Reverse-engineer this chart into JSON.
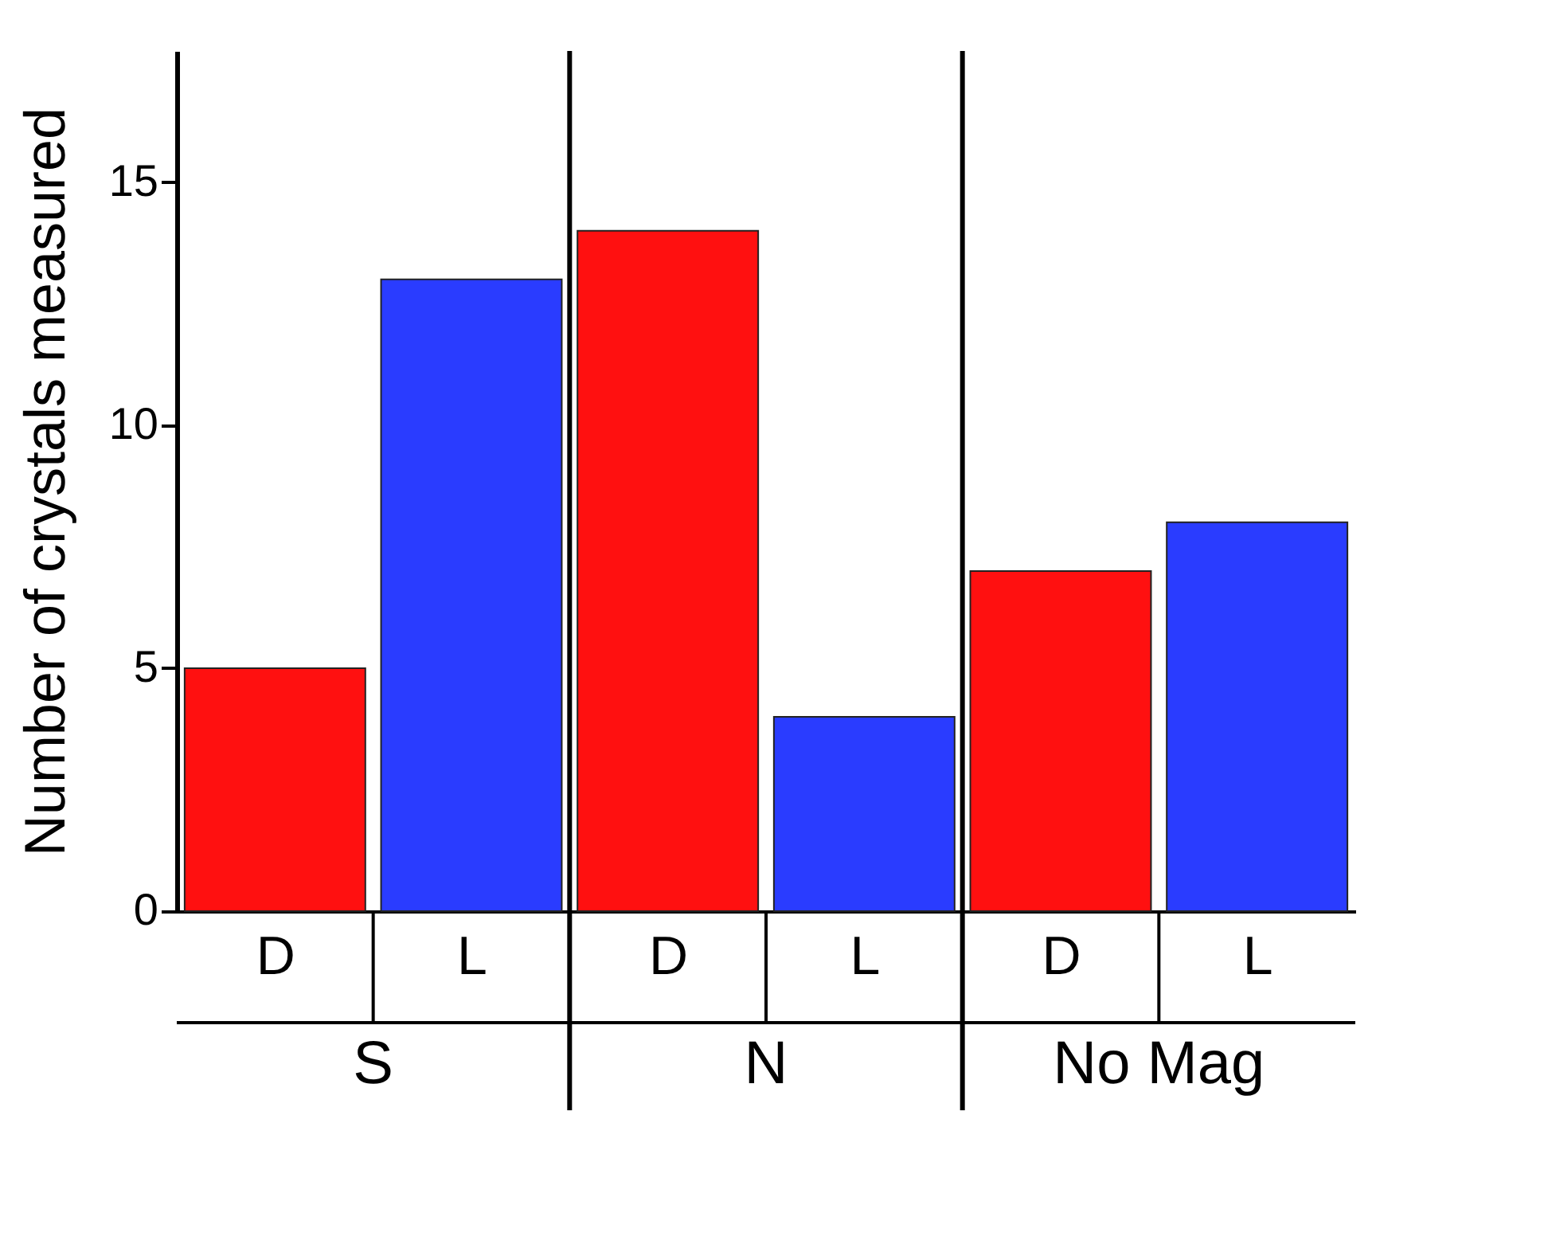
{
  "chart_data": {
    "type": "bar",
    "ylabel": "Number of crystals measured",
    "categories": [
      "D",
      "L",
      "D",
      "L",
      "D",
      "L"
    ],
    "values": [
      5,
      13,
      14,
      4,
      7,
      8
    ],
    "colors": [
      "#ff1010",
      "#2a3cff",
      "#ff1010",
      "#2a3cff",
      "#ff1010",
      "#2a3cff"
    ],
    "annotations": [
      "S",
      "N",
      "No Mag"
    ],
    "ylim": [
      0,
      17.7
    ],
    "yticks": [
      0,
      5,
      10,
      15
    ],
    "grid": false
  }
}
